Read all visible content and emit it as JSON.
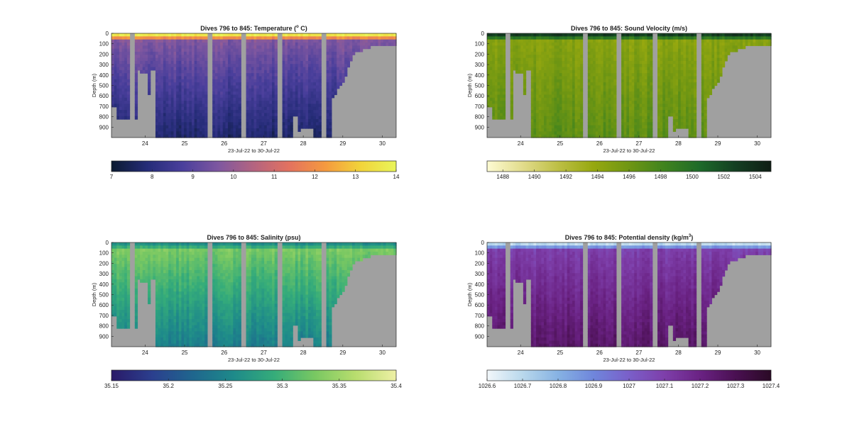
{
  "chart_data": [
    {
      "type": "heatmap",
      "title": "Dives 796 to 845: Temperature (",
      "title_suffix": " C)",
      "title_sup": "o",
      "xlabel": "23-Jul-22 to 30-Jul-22",
      "ylabel": "Depth (m)",
      "xticks": [
        "24",
        "25",
        "26",
        "27",
        "28",
        "29",
        "30"
      ],
      "xlim": [
        23.15,
        30.35
      ],
      "yticks": [
        "0",
        "100",
        "200",
        "300",
        "400",
        "500",
        "600",
        "700",
        "800",
        "900"
      ],
      "ylim": [
        0,
        1000
      ],
      "colorbar": {
        "ticks": [
          "7",
          "8",
          "9",
          "10",
          "11",
          "12",
          "13",
          "14"
        ],
        "range": [
          7,
          14
        ],
        "colormap": [
          "#0b1a30",
          "#252c78",
          "#4a3f9c",
          "#7e57a0",
          "#b46480",
          "#e3725f",
          "#f5993f",
          "#f2d43a",
          "#e9f55a"
        ]
      },
      "profile_mid": 0.38,
      "profile_deep": 0.1,
      "surface_value": 0.95
    },
    {
      "type": "heatmap",
      "title": "Dives 796 to 845: Sound Velocity (m/s)",
      "xlabel": "23-Jul-22 to 30-Jul-22",
      "ylabel": "Depth (m)",
      "xticks": [
        "24",
        "25",
        "26",
        "27",
        "28",
        "29",
        "30"
      ],
      "xlim": [
        23.15,
        30.35
      ],
      "yticks": [
        "0",
        "100",
        "200",
        "300",
        "400",
        "500",
        "600",
        "700",
        "800",
        "900"
      ],
      "ylim": [
        0,
        1000
      ],
      "colorbar": {
        "ticks": [
          "1488",
          "1490",
          "1492",
          "1494",
          "1496",
          "1498",
          "1500",
          "1502",
          "1504"
        ],
        "range": [
          1487,
          1505
        ],
        "colormap": [
          "#fdfbd3",
          "#e2dc8c",
          "#bdbf45",
          "#96a80f",
          "#6f9613",
          "#3f831e",
          "#1e6a2a",
          "#143f22",
          "#0f1d14"
        ]
      },
      "profile_mid": 0.42,
      "profile_deep": 0.55,
      "surface_value": 0.88
    },
    {
      "type": "heatmap",
      "title": "Dives 796 to 845: Salinity (psu)",
      "xlabel": "23-Jul-22 to 30-Jul-22",
      "ylabel": "Depth (m)",
      "xticks": [
        "24",
        "25",
        "26",
        "27",
        "28",
        "29",
        "30"
      ],
      "xlim": [
        23.15,
        30.35
      ],
      "yticks": [
        "0",
        "100",
        "200",
        "300",
        "400",
        "500",
        "600",
        "700",
        "800",
        "900"
      ],
      "ylim": [
        0,
        1000
      ],
      "colorbar": {
        "ticks": [
          "35.15",
          "35.2",
          "35.25",
          "35.3",
          "35.35",
          "35.4"
        ],
        "range": [
          35.15,
          35.4
        ],
        "colormap": [
          "#2a1a68",
          "#2b3f8e",
          "#1f668e",
          "#1e8a8a",
          "#35ac7a",
          "#79c862",
          "#b8dd6e",
          "#eef0a5"
        ]
      },
      "profile_mid": 0.72,
      "profile_deep": 0.38,
      "surface_value": 0.45
    },
    {
      "type": "heatmap",
      "title": "Dives 796 to 845: Potential density (kg/m",
      "title_suffix": ")",
      "title_sup": "3",
      "xlabel": "23-Jul-22 to 30-Jul-22",
      "ylabel": "Depth (m)",
      "xticks": [
        "24",
        "25",
        "26",
        "27",
        "28",
        "29",
        "30"
      ],
      "xlim": [
        23.15,
        30.35
      ],
      "yticks": [
        "0",
        "100",
        "200",
        "300",
        "400",
        "500",
        "600",
        "700",
        "800",
        "900"
      ],
      "ylim": [
        0,
        1000
      ],
      "colorbar": {
        "ticks": [
          "1026.6",
          "1026.7",
          "1026.8",
          "1026.9",
          "1027",
          "1027.1",
          "1027.2",
          "1027.3",
          "1027.4"
        ],
        "range": [
          1026.6,
          1027.4
        ],
        "colormap": [
          "#f2f7fa",
          "#b9d8ec",
          "#86b2e3",
          "#6f86dc",
          "#7a5fc9",
          "#7e3faa",
          "#6a2283",
          "#4a1052",
          "#2a0a25"
        ]
      },
      "profile_mid": 0.62,
      "profile_deep": 0.82,
      "surface_value": 0.12
    }
  ],
  "terrain": {
    "gap_columns_days": [
      [
        23.62,
        23.74
      ],
      [
        25.55,
        25.7
      ],
      [
        26.42,
        26.57
      ],
      [
        27.35,
        27.47
      ],
      [
        28.42,
        28.58
      ]
    ],
    "seafloor_depth_by_day": [
      [
        23.15,
        710
      ],
      [
        23.3,
        810
      ],
      [
        23.55,
        810
      ],
      [
        23.75,
        810
      ],
      [
        23.82,
        360
      ],
      [
        23.9,
        380
      ],
      [
        24.0,
        370
      ],
      [
        24.05,
        580
      ],
      [
        24.12,
        360
      ],
      [
        24.25,
        1000
      ],
      [
        25.55,
        1000
      ],
      [
        26.42,
        1000
      ],
      [
        27.0,
        1000
      ],
      [
        27.4,
        1000
      ],
      [
        27.75,
        780
      ],
      [
        27.85,
        940
      ],
      [
        27.95,
        900
      ],
      [
        28.25,
        1000
      ],
      [
        28.7,
        650
      ],
      [
        28.85,
        560
      ],
      [
        29.0,
        470
      ],
      [
        29.1,
        380
      ],
      [
        29.25,
        200
      ],
      [
        29.4,
        180
      ],
      [
        29.6,
        140
      ],
      [
        29.9,
        120
      ],
      [
        30.35,
        110
      ]
    ]
  }
}
